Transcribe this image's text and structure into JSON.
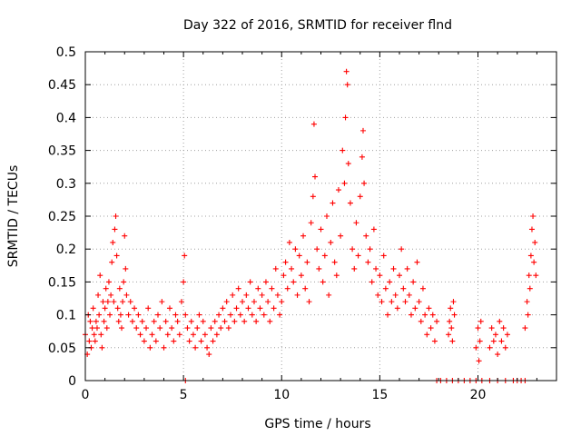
{
  "chart_data": {
    "type": "scatter",
    "title": "Day 322 of 2016, SRMTID for receiver flnd",
    "xlabel": "GPS time / hours",
    "ylabel": "SRMTID / TECUs",
    "xlim": [
      0,
      24
    ],
    "ylim": [
      0,
      0.5
    ],
    "xticks": [
      0,
      5,
      10,
      15,
      20
    ],
    "yticks": [
      0,
      0.05,
      0.1,
      0.15,
      0.2,
      0.25,
      0.3,
      0.35,
      0.4,
      0.45,
      0.5
    ],
    "xtick_labels": [
      "0",
      "5",
      "10",
      "15",
      "20"
    ],
    "ytick_labels": [
      "0",
      "0.05",
      "0.1",
      "0.15",
      "0.2",
      "0.25",
      "0.3",
      "0.35",
      "0.4",
      "0.45",
      "0.5"
    ],
    "grid": true,
    "marker": "plus",
    "color": "#ff0000",
    "series": [
      {
        "points": [
          [
            0.0,
            0.07
          ],
          [
            0.1,
            0.04
          ],
          [
            0.15,
            0.1
          ],
          [
            0.2,
            0.06
          ],
          [
            0.25,
            0.09
          ],
          [
            0.3,
            0.05
          ],
          [
            0.35,
            0.08
          ],
          [
            0.4,
            0.11
          ],
          [
            0.45,
            0.07
          ],
          [
            0.5,
            0.06
          ],
          [
            0.55,
            0.09
          ],
          [
            0.6,
            0.08
          ],
          [
            0.65,
            0.13
          ],
          [
            0.7,
            0.1
          ],
          [
            0.75,
            0.16
          ],
          [
            0.8,
            0.07
          ],
          [
            0.85,
            0.05
          ],
          [
            0.9,
            0.12
          ],
          [
            0.95,
            0.09
          ],
          [
            1.0,
            0.11
          ],
          [
            1.05,
            0.14
          ],
          [
            1.1,
            0.08
          ],
          [
            1.15,
            0.12
          ],
          [
            1.2,
            0.15
          ],
          [
            1.25,
            0.1
          ],
          [
            1.3,
            0.13
          ],
          [
            1.35,
            0.18
          ],
          [
            1.4,
            0.21
          ],
          [
            1.45,
            0.12
          ],
          [
            1.5,
            0.23
          ],
          [
            1.55,
            0.25
          ],
          [
            1.6,
            0.19
          ],
          [
            1.65,
            0.11
          ],
          [
            1.7,
            0.09
          ],
          [
            1.75,
            0.14
          ],
          [
            1.8,
            0.1
          ],
          [
            1.85,
            0.08
          ],
          [
            1.9,
            0.12
          ],
          [
            1.95,
            0.15
          ],
          [
            2.0,
            0.22
          ],
          [
            2.05,
            0.17
          ],
          [
            2.1,
            0.13
          ],
          [
            2.2,
            0.1
          ],
          [
            2.3,
            0.12
          ],
          [
            2.4,
            0.09
          ],
          [
            2.5,
            0.11
          ],
          [
            2.6,
            0.08
          ],
          [
            2.7,
            0.1
          ],
          [
            2.8,
            0.07
          ],
          [
            2.9,
            0.09
          ],
          [
            3.0,
            0.06
          ],
          [
            3.1,
            0.08
          ],
          [
            3.2,
            0.11
          ],
          [
            3.3,
            0.05
          ],
          [
            3.4,
            0.07
          ],
          [
            3.5,
            0.09
          ],
          [
            3.6,
            0.06
          ],
          [
            3.7,
            0.1
          ],
          [
            3.8,
            0.08
          ],
          [
            3.9,
            0.12
          ],
          [
            4.0,
            0.05
          ],
          [
            4.1,
            0.09
          ],
          [
            4.2,
            0.07
          ],
          [
            4.3,
            0.11
          ],
          [
            4.4,
            0.08
          ],
          [
            4.5,
            0.06
          ],
          [
            4.6,
            0.1
          ],
          [
            4.7,
            0.09
          ],
          [
            4.8,
            0.07
          ],
          [
            4.9,
            0.12
          ],
          [
            5.0,
            0.15
          ],
          [
            5.05,
            0.19
          ],
          [
            5.1,
            0.1
          ],
          [
            5.2,
            0.08
          ],
          [
            5.3,
            0.06
          ],
          [
            5.4,
            0.09
          ],
          [
            5.5,
            0.07
          ],
          [
            5.6,
            0.05
          ],
          [
            5.7,
            0.08
          ],
          [
            5.8,
            0.1
          ],
          [
            5.9,
            0.06
          ],
          [
            6.0,
            0.09
          ],
          [
            6.1,
            0.07
          ],
          [
            6.2,
            0.05
          ],
          [
            6.3,
            0.04
          ],
          [
            6.4,
            0.08
          ],
          [
            6.5,
            0.06
          ],
          [
            6.6,
            0.09
          ],
          [
            6.7,
            0.07
          ],
          [
            6.8,
            0.1
          ],
          [
            6.9,
            0.08
          ],
          [
            7.0,
            0.11
          ],
          [
            7.1,
            0.09
          ],
          [
            7.2,
            0.12
          ],
          [
            7.3,
            0.08
          ],
          [
            7.4,
            0.1
          ],
          [
            7.5,
            0.13
          ],
          [
            7.6,
            0.09
          ],
          [
            7.7,
            0.11
          ],
          [
            7.8,
            0.14
          ],
          [
            7.9,
            0.1
          ],
          [
            8.0,
            0.12
          ],
          [
            8.1,
            0.09
          ],
          [
            8.2,
            0.13
          ],
          [
            8.3,
            0.11
          ],
          [
            8.4,
            0.15
          ],
          [
            8.5,
            0.1
          ],
          [
            8.6,
            0.12
          ],
          [
            8.7,
            0.09
          ],
          [
            8.8,
            0.14
          ],
          [
            8.9,
            0.11
          ],
          [
            9.0,
            0.13
          ],
          [
            9.1,
            0.1
          ],
          [
            9.2,
            0.15
          ],
          [
            9.3,
            0.12
          ],
          [
            9.4,
            0.09
          ],
          [
            9.5,
            0.14
          ],
          [
            9.6,
            0.11
          ],
          [
            9.7,
            0.17
          ],
          [
            9.8,
            0.13
          ],
          [
            9.9,
            0.1
          ],
          [
            10.0,
            0.12
          ],
          [
            10.1,
            0.16
          ],
          [
            10.2,
            0.18
          ],
          [
            10.3,
            0.14
          ],
          [
            10.4,
            0.21
          ],
          [
            10.5,
            0.17
          ],
          [
            10.6,
            0.15
          ],
          [
            10.7,
            0.2
          ],
          [
            10.8,
            0.13
          ],
          [
            10.9,
            0.19
          ],
          [
            11.0,
            0.16
          ],
          [
            11.1,
            0.22
          ],
          [
            11.2,
            0.14
          ],
          [
            11.3,
            0.18
          ],
          [
            11.4,
            0.12
          ],
          [
            11.5,
            0.24
          ],
          [
            11.6,
            0.28
          ],
          [
            11.65,
            0.39
          ],
          [
            11.7,
            0.31
          ],
          [
            11.8,
            0.2
          ],
          [
            11.9,
            0.17
          ],
          [
            12.0,
            0.23
          ],
          [
            12.1,
            0.15
          ],
          [
            12.2,
            0.19
          ],
          [
            12.3,
            0.25
          ],
          [
            12.4,
            0.13
          ],
          [
            12.5,
            0.21
          ],
          [
            12.6,
            0.27
          ],
          [
            12.7,
            0.18
          ],
          [
            12.8,
            0.16
          ],
          [
            12.9,
            0.29
          ],
          [
            13.0,
            0.22
          ],
          [
            13.1,
            0.35
          ],
          [
            13.2,
            0.3
          ],
          [
            13.25,
            0.4
          ],
          [
            13.3,
            0.47
          ],
          [
            13.35,
            0.45
          ],
          [
            13.4,
            0.33
          ],
          [
            13.5,
            0.27
          ],
          [
            13.6,
            0.2
          ],
          [
            13.7,
            0.17
          ],
          [
            13.8,
            0.24
          ],
          [
            13.9,
            0.19
          ],
          [
            14.0,
            0.28
          ],
          [
            14.1,
            0.34
          ],
          [
            14.15,
            0.38
          ],
          [
            14.2,
            0.3
          ],
          [
            14.3,
            0.22
          ],
          [
            14.4,
            0.18
          ],
          [
            14.5,
            0.2
          ],
          [
            14.6,
            0.15
          ],
          [
            14.7,
            0.23
          ],
          [
            14.8,
            0.17
          ],
          [
            14.9,
            0.13
          ],
          [
            15.0,
            0.16
          ],
          [
            15.1,
            0.12
          ],
          [
            15.2,
            0.19
          ],
          [
            15.3,
            0.14
          ],
          [
            15.4,
            0.1
          ],
          [
            15.5,
            0.15
          ],
          [
            15.6,
            0.12
          ],
          [
            15.7,
            0.17
          ],
          [
            15.8,
            0.13
          ],
          [
            15.9,
            0.11
          ],
          [
            16.0,
            0.16
          ],
          [
            16.1,
            0.2
          ],
          [
            16.2,
            0.14
          ],
          [
            16.3,
            0.12
          ],
          [
            16.4,
            0.17
          ],
          [
            16.5,
            0.13
          ],
          [
            16.6,
            0.1
          ],
          [
            16.7,
            0.15
          ],
          [
            16.8,
            0.11
          ],
          [
            16.9,
            0.18
          ],
          [
            17.0,
            0.12
          ],
          [
            17.1,
            0.09
          ],
          [
            17.2,
            0.14
          ],
          [
            17.3,
            0.1
          ],
          [
            17.4,
            0.07
          ],
          [
            17.5,
            0.11
          ],
          [
            17.6,
            0.08
          ],
          [
            17.7,
            0.1
          ],
          [
            17.8,
            0.06
          ],
          [
            17.9,
            0.09
          ],
          [
            18.5,
            0.07
          ],
          [
            18.55,
            0.09
          ],
          [
            18.6,
            0.11
          ],
          [
            18.65,
            0.08
          ],
          [
            18.7,
            0.06
          ],
          [
            18.75,
            0.12
          ],
          [
            18.8,
            0.1
          ],
          [
            19.9,
            0.05
          ],
          [
            20.0,
            0.08
          ],
          [
            20.05,
            0.03
          ],
          [
            20.1,
            0.06
          ],
          [
            20.15,
            0.09
          ],
          [
            20.6,
            0.05
          ],
          [
            20.7,
            0.08
          ],
          [
            20.8,
            0.06
          ],
          [
            20.9,
            0.07
          ],
          [
            21.0,
            0.04
          ],
          [
            21.1,
            0.09
          ],
          [
            21.2,
            0.06
          ],
          [
            21.3,
            0.08
          ],
          [
            21.4,
            0.05
          ],
          [
            21.5,
            0.07
          ],
          [
            22.4,
            0.08
          ],
          [
            22.5,
            0.12
          ],
          [
            22.55,
            0.1
          ],
          [
            22.6,
            0.16
          ],
          [
            22.65,
            0.14
          ],
          [
            22.7,
            0.19
          ],
          [
            22.75,
            0.23
          ],
          [
            22.8,
            0.25
          ],
          [
            22.85,
            0.18
          ],
          [
            22.9,
            0.21
          ],
          [
            22.95,
            0.16
          ]
        ]
      },
      {
        "points": [
          [
            5.1,
            0
          ],
          [
            17.9,
            0
          ],
          [
            18.1,
            0
          ],
          [
            18.4,
            0
          ],
          [
            18.7,
            0
          ],
          [
            19.0,
            0
          ],
          [
            19.3,
            0
          ],
          [
            19.6,
            0
          ],
          [
            19.9,
            0
          ],
          [
            20.2,
            0
          ],
          [
            20.6,
            0
          ],
          [
            21.0,
            0
          ],
          [
            21.4,
            0
          ],
          [
            21.8,
            0
          ],
          [
            22.0,
            0
          ],
          [
            22.2,
            0
          ],
          [
            22.4,
            0
          ]
        ]
      }
    ]
  }
}
